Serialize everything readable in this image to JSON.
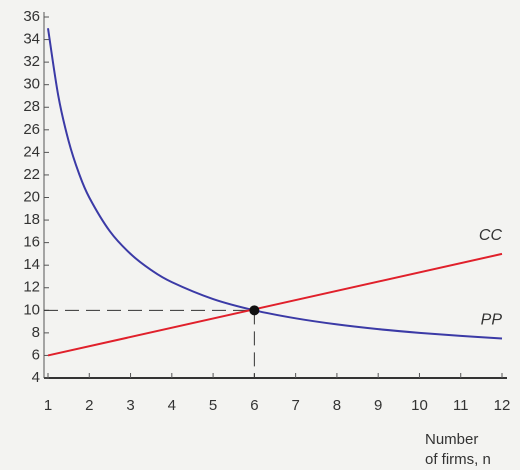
{
  "chart_data": {
    "type": "line",
    "xlabel": [
      "Number",
      "of firms, n"
    ],
    "xlim": [
      1,
      12
    ],
    "xticks": [
      1,
      2,
      3,
      4,
      5,
      6,
      7,
      8,
      9,
      10,
      11,
      12
    ],
    "ylim": [
      4,
      36
    ],
    "yticks": [
      4,
      6,
      8,
      10,
      12,
      14,
      16,
      18,
      20,
      22,
      24,
      26,
      28,
      30,
      32,
      34,
      36
    ],
    "series": [
      {
        "name": "PP",
        "color": "#3b3aa6",
        "x": [
          1,
          1.25,
          1.5,
          1.75,
          2,
          2.5,
          3,
          3.5,
          4,
          5,
          6,
          7,
          8,
          9,
          10,
          11,
          12
        ],
        "values": [
          35,
          29,
          25,
          22.14,
          20,
          17,
          15,
          13.57,
          12.5,
          11,
          10,
          9.29,
          8.75,
          8.33,
          8,
          7.73,
          7.5
        ]
      },
      {
        "name": "CC",
        "color": "#e0202b",
        "x": [
          1,
          12
        ],
        "values": [
          6,
          15
        ]
      }
    ],
    "equilibrium": {
      "x": 6,
      "y": 10
    }
  }
}
